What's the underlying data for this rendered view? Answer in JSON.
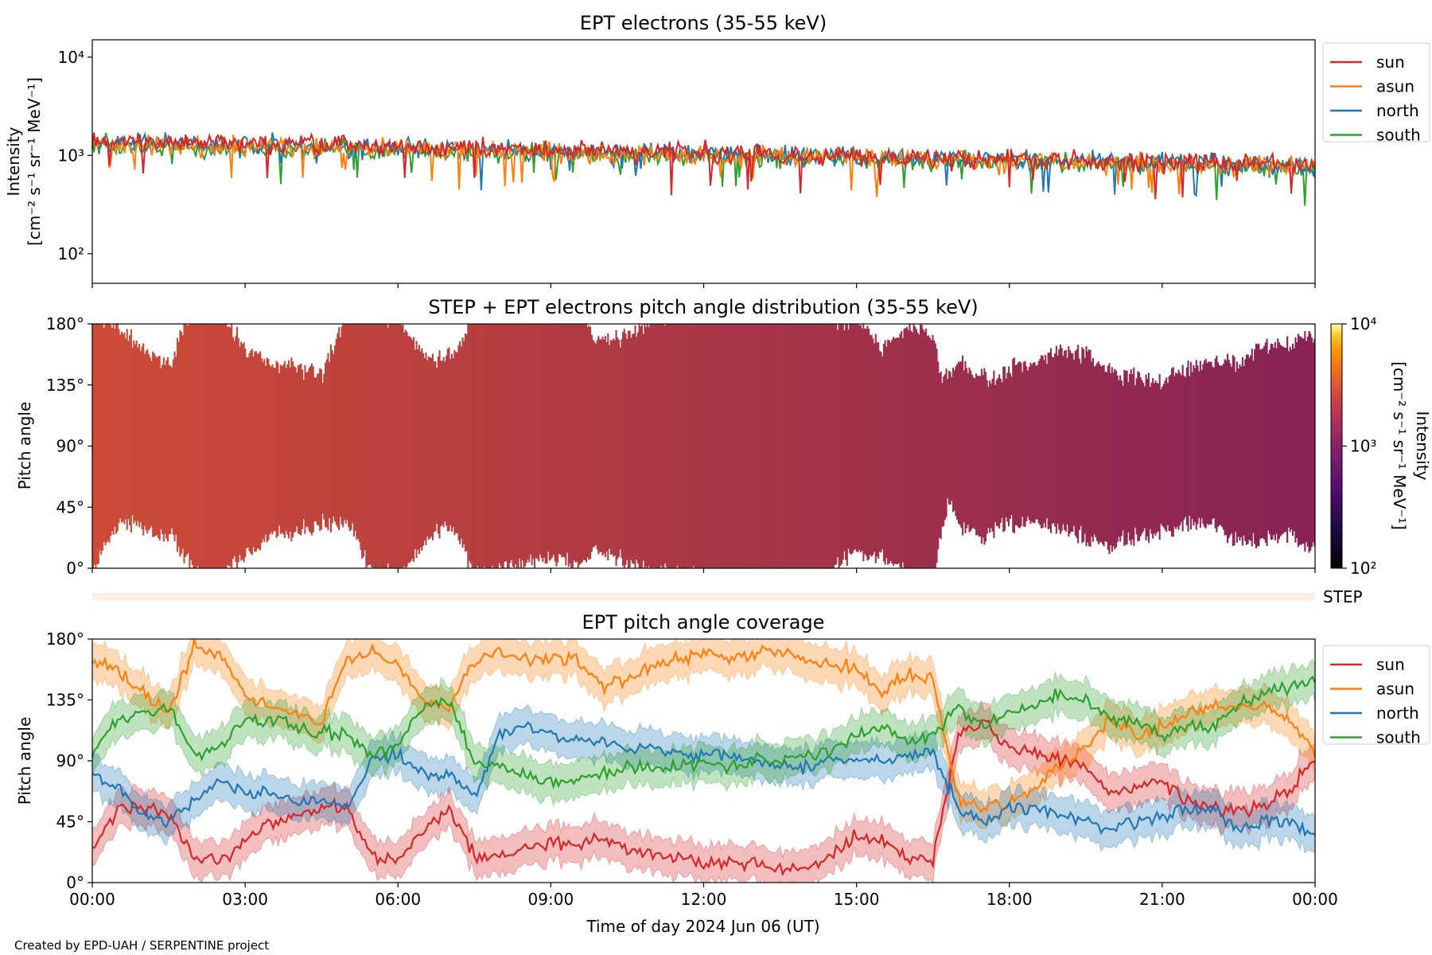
{
  "colors": {
    "sun": "#d62728",
    "asun": "#ff7f0e",
    "north": "#1f77b4",
    "south": "#2ca02c",
    "step_band": "#fdeee6",
    "pad_fill": "#b0354a"
  },
  "legend": [
    "sun",
    "asun",
    "north",
    "south"
  ],
  "footer": {
    "credit": "Created by EPD-UAH / SERPENTINE project"
  },
  "chart_data": [
    {
      "type": "line",
      "title": "EPT electrons (35-55 keV)",
      "ylabel_line1": "Intensity",
      "ylabel_unit": "[cm⁻² s⁻¹ sr⁻¹ MeV⁻¹]",
      "yscale": "log",
      "ylim": [
        50,
        15000
      ],
      "yticks": [
        "10²",
        "10³",
        "10⁴"
      ],
      "xlim": [
        "2024-06-06 00:00",
        "2024-06-07 00:00"
      ],
      "legend_position": "outside-right",
      "x": [
        "00:00",
        "02:00",
        "04:00",
        "06:00",
        "08:00",
        "10:00",
        "12:00",
        "14:00",
        "16:00",
        "18:00",
        "20:00",
        "22:00",
        "24:00"
      ],
      "series": [
        {
          "name": "sun",
          "values": [
            1400,
            1350,
            1280,
            1220,
            1180,
            1120,
            1060,
            1000,
            960,
            920,
            880,
            830,
            780
          ]
        },
        {
          "name": "asun",
          "values": [
            1300,
            1250,
            1200,
            1150,
            1100,
            1050,
            1000,
            960,
            920,
            880,
            840,
            800,
            760
          ]
        },
        {
          "name": "north",
          "values": [
            1350,
            1300,
            1240,
            1180,
            1140,
            1090,
            1040,
            990,
            950,
            910,
            870,
            820,
            770
          ]
        },
        {
          "name": "south",
          "values": [
            1250,
            1200,
            1160,
            1120,
            1080,
            1030,
            990,
            950,
            900,
            860,
            820,
            780,
            740
          ]
        }
      ]
    },
    {
      "type": "heatmap",
      "title": "STEP + EPT electrons pitch angle distribution (35-55 keV)",
      "ylabel": "Pitch angle",
      "ylim": [
        0,
        180
      ],
      "yticks": [
        "0°",
        "45°",
        "90°",
        "135°",
        "180°"
      ],
      "colorbar": {
        "label_line1": "Intensity",
        "label_unit": "[cm⁻² s⁻¹ sr⁻¹ MeV⁻¹]",
        "scale": "log",
        "range": [
          100,
          10000
        ],
        "ticks": [
          "10²",
          "10³",
          "10⁴"
        ],
        "colormap": "inferno"
      },
      "step_label": "STEP"
    },
    {
      "type": "line",
      "title": "EPT pitch angle coverage",
      "ylabel": "Pitch angle",
      "xlabel": "Time of day 2024 Jun 06 (UT)",
      "ylim": [
        0,
        180
      ],
      "yticks": [
        "0°",
        "45°",
        "90°",
        "135°",
        "180°"
      ],
      "xticks": [
        "00:00",
        "03:00",
        "06:00",
        "09:00",
        "12:00",
        "15:00",
        "18:00",
        "21:00",
        "00:00"
      ],
      "legend_position": "outside-right",
      "x_hours": [
        0,
        0.5,
        1,
        1.5,
        2,
        2.5,
        3,
        3.5,
        4,
        4.5,
        5,
        5.5,
        6,
        6.5,
        7,
        7.5,
        8,
        8.5,
        9,
        9.5,
        10,
        10.5,
        11,
        11.5,
        12,
        12.5,
        13,
        13.5,
        14,
        14.5,
        15,
        15.5,
        16,
        16.5,
        17,
        17.5,
        18,
        18.5,
        19,
        19.5,
        20,
        20.5,
        21,
        21.5,
        22,
        22.5,
        23,
        23.5,
        24
      ],
      "series": [
        {
          "name": "sun",
          "values": [
            20,
            55,
            55,
            50,
            20,
            15,
            30,
            45,
            50,
            55,
            55,
            20,
            15,
            40,
            55,
            20,
            20,
            25,
            30,
            25,
            35,
            25,
            20,
            20,
            15,
            15,
            15,
            10,
            10,
            20,
            35,
            30,
            20,
            15,
            110,
            120,
            100,
            95,
            90,
            85,
            65,
            70,
            75,
            60,
            55,
            55,
            55,
            70,
            90
          ]
        },
        {
          "name": "asun",
          "values": [
            165,
            155,
            140,
            125,
            175,
            170,
            140,
            130,
            125,
            120,
            165,
            170,
            160,
            135,
            130,
            165,
            170,
            165,
            165,
            165,
            145,
            150,
            160,
            165,
            170,
            165,
            170,
            170,
            165,
            160,
            160,
            140,
            155,
            150,
            60,
            55,
            60,
            70,
            85,
            100,
            120,
            110,
            115,
            125,
            130,
            130,
            130,
            120,
            95
          ]
        },
        {
          "name": "north",
          "values": [
            80,
            70,
            50,
            45,
            60,
            75,
            65,
            65,
            60,
            60,
            55,
            90,
            95,
            80,
            80,
            65,
            110,
            115,
            110,
            105,
            105,
            100,
            100,
            95,
            95,
            95,
            90,
            85,
            85,
            90,
            90,
            90,
            95,
            95,
            55,
            45,
            55,
            55,
            50,
            45,
            40,
            45,
            50,
            55,
            55,
            40,
            45,
            45,
            35
          ]
        },
        {
          "name": "south",
          "values": [
            95,
            120,
            125,
            130,
            95,
            100,
            120,
            120,
            115,
            110,
            110,
            95,
            100,
            130,
            135,
            90,
            85,
            80,
            75,
            75,
            80,
            85,
            85,
            85,
            90,
            85,
            90,
            90,
            95,
            95,
            110,
            115,
            105,
            110,
            130,
            115,
            125,
            130,
            140,
            135,
            120,
            120,
            110,
            115,
            115,
            130,
            140,
            145,
            150
          ]
        }
      ]
    }
  ]
}
